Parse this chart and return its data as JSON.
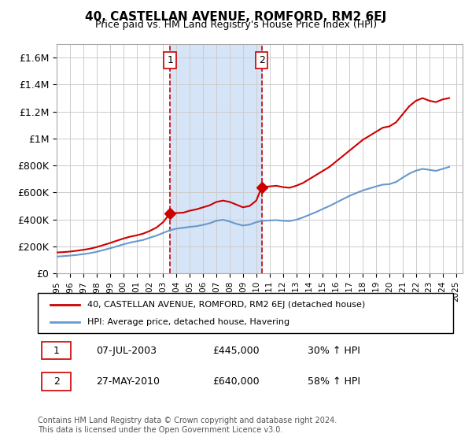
{
  "title": "40, CASTELLAN AVENUE, ROMFORD, RM2 6EJ",
  "subtitle": "Price paid vs. HM Land Registry's House Price Index (HPI)",
  "xlim_start": 1995.0,
  "xlim_end": 2025.5,
  "ylim_min": 0,
  "ylim_max": 1700000,
  "yticks": [
    0,
    200000,
    400000,
    600000,
    800000,
    1000000,
    1200000,
    1400000,
    1600000
  ],
  "ytick_labels": [
    "£0",
    "£200K",
    "£400K",
    "£600K",
    "£800K",
    "£1M",
    "£1.2M",
    "£1.4M",
    "£1.6M"
  ],
  "xtick_years": [
    1995,
    1996,
    1997,
    1998,
    1999,
    2000,
    2001,
    2002,
    2003,
    2004,
    2005,
    2006,
    2007,
    2008,
    2009,
    2010,
    2011,
    2012,
    2013,
    2014,
    2015,
    2016,
    2017,
    2018,
    2019,
    2020,
    2021,
    2022,
    2023,
    2024,
    2025
  ],
  "transaction1_x": 2003.52,
  "transaction1_y": 445000,
  "transaction1_label": "1",
  "transaction1_date": "07-JUL-2003",
  "transaction1_price": "£445,000",
  "transaction1_hpi": "30% ↑ HPI",
  "transaction2_x": 2010.41,
  "transaction2_y": 640000,
  "transaction2_label": "2",
  "transaction2_date": "27-MAY-2010",
  "transaction2_price": "£640,000",
  "transaction2_hpi": "58% ↑ HPI",
  "shade_color": "#d6e4f7",
  "vline_color": "#cc0000",
  "red_line_color": "#cc0000",
  "blue_line_color": "#6699cc",
  "legend_line1": "40, CASTELLAN AVENUE, ROMFORD, RM2 6EJ (detached house)",
  "legend_line2": "HPI: Average price, detached house, Havering",
  "footer": "Contains HM Land Registry data © Crown copyright and database right 2024.\nThis data is licensed under the Open Government Licence v3.0.",
  "red_x": [
    1995.0,
    1995.5,
    1996.0,
    1996.5,
    1997.0,
    1997.5,
    1998.0,
    1998.5,
    1999.0,
    1999.5,
    2000.0,
    2000.5,
    2001.0,
    2001.5,
    2002.0,
    2002.5,
    2003.0,
    2003.52,
    2004.0,
    2004.5,
    2005.0,
    2005.5,
    2006.0,
    2006.5,
    2007.0,
    2007.5,
    2008.0,
    2008.5,
    2009.0,
    2009.5,
    2010.0,
    2010.41,
    2011.0,
    2011.5,
    2012.0,
    2012.5,
    2013.0,
    2013.5,
    2014.0,
    2014.5,
    2015.0,
    2015.5,
    2016.0,
    2016.5,
    2017.0,
    2017.5,
    2018.0,
    2018.5,
    2019.0,
    2019.5,
    2020.0,
    2020.5,
    2021.0,
    2021.5,
    2022.0,
    2022.5,
    2023.0,
    2023.5,
    2024.0,
    2024.5
  ],
  "red_y": [
    155000,
    158000,
    162000,
    168000,
    175000,
    183000,
    195000,
    210000,
    225000,
    242000,
    258000,
    272000,
    282000,
    295000,
    315000,
    340000,
    380000,
    445000,
    448000,
    450000,
    465000,
    475000,
    490000,
    505000,
    530000,
    540000,
    530000,
    510000,
    490000,
    500000,
    540000,
    640000,
    645000,
    650000,
    640000,
    635000,
    650000,
    670000,
    700000,
    730000,
    760000,
    790000,
    830000,
    870000,
    910000,
    950000,
    990000,
    1020000,
    1050000,
    1080000,
    1090000,
    1120000,
    1180000,
    1240000,
    1280000,
    1300000,
    1280000,
    1270000,
    1290000,
    1300000
  ],
  "blue_x": [
    1995.0,
    1995.5,
    1996.0,
    1996.5,
    1997.0,
    1997.5,
    1998.0,
    1998.5,
    1999.0,
    1999.5,
    2000.0,
    2000.5,
    2001.0,
    2001.5,
    2002.0,
    2002.5,
    2003.0,
    2003.5,
    2004.0,
    2004.5,
    2005.0,
    2005.5,
    2006.0,
    2006.5,
    2007.0,
    2007.5,
    2008.0,
    2008.5,
    2009.0,
    2009.5,
    2010.0,
    2010.5,
    2011.0,
    2011.5,
    2012.0,
    2012.5,
    2013.0,
    2013.5,
    2014.0,
    2014.5,
    2015.0,
    2015.5,
    2016.0,
    2016.5,
    2017.0,
    2017.5,
    2018.0,
    2018.5,
    2019.0,
    2019.5,
    2020.0,
    2020.5,
    2021.0,
    2021.5,
    2022.0,
    2022.5,
    2023.0,
    2023.5,
    2024.0,
    2024.5
  ],
  "blue_y": [
    125000,
    128000,
    132000,
    137000,
    143000,
    150000,
    160000,
    173000,
    186000,
    200000,
    215000,
    228000,
    238000,
    248000,
    265000,
    280000,
    300000,
    320000,
    332000,
    338000,
    345000,
    350000,
    360000,
    372000,
    390000,
    398000,
    385000,
    368000,
    355000,
    362000,
    380000,
    390000,
    393000,
    395000,
    390000,
    388000,
    398000,
    415000,
    435000,
    455000,
    478000,
    500000,
    525000,
    550000,
    575000,
    595000,
    615000,
    630000,
    645000,
    658000,
    662000,
    678000,
    710000,
    740000,
    762000,
    775000,
    768000,
    760000,
    775000,
    790000
  ]
}
